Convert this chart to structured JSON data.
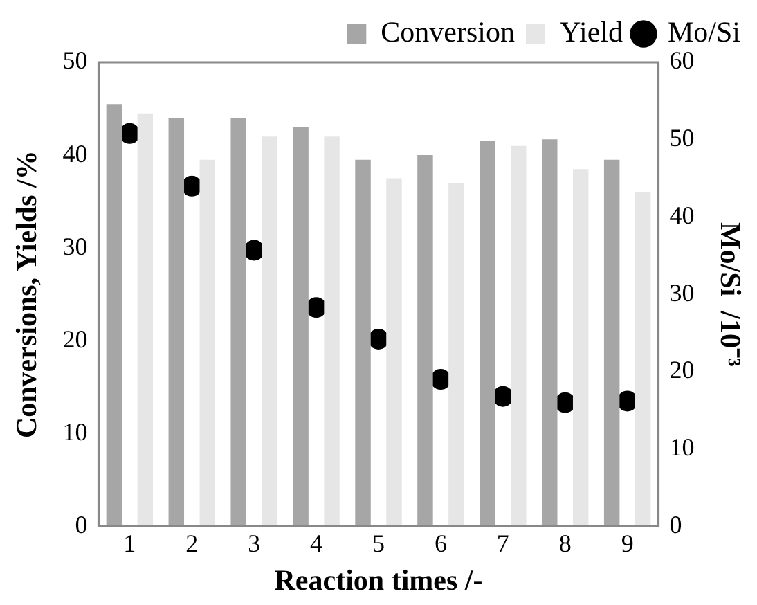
{
  "chart_data": {
    "type": "bar",
    "xlabel": "Reaction times /-",
    "ylabel": "Conversions, Yields /%",
    "y2label": "Mo/Si  /10⁻³",
    "categories": [
      "1",
      "2",
      "3",
      "4",
      "5",
      "6",
      "7",
      "8",
      "9"
    ],
    "series": [
      {
        "name": "Conversion",
        "color": "#a6a6a6",
        "values": [
          45.5,
          44,
          44,
          43,
          39.5,
          40,
          41.5,
          41.7,
          39.5
        ]
      },
      {
        "name": "Yield",
        "color": "#e6e6e6",
        "values": [
          44.5,
          39.5,
          42,
          42,
          37.5,
          37,
          41,
          38.5,
          36
        ]
      },
      {
        "name": "Mo/Si",
        "type": "scatter",
        "axis": "y2",
        "color": "#000000",
        "marker": "circle",
        "x": [
          "1",
          "2",
          "3",
          "4",
          "5",
          "6",
          "7",
          "8",
          "9"
        ],
        "values": [
          50.8,
          44,
          35.7,
          28.3,
          24.2,
          19,
          16.8,
          16,
          16.2
        ]
      }
    ],
    "ylim": [
      0,
      50
    ],
    "yticks": [
      0,
      10,
      20,
      30,
      40,
      50
    ],
    "y2lim": [
      0,
      60
    ],
    "y2ticks": [
      0,
      10,
      20,
      30,
      40,
      50,
      60
    ],
    "grid": false,
    "legend": "top"
  }
}
